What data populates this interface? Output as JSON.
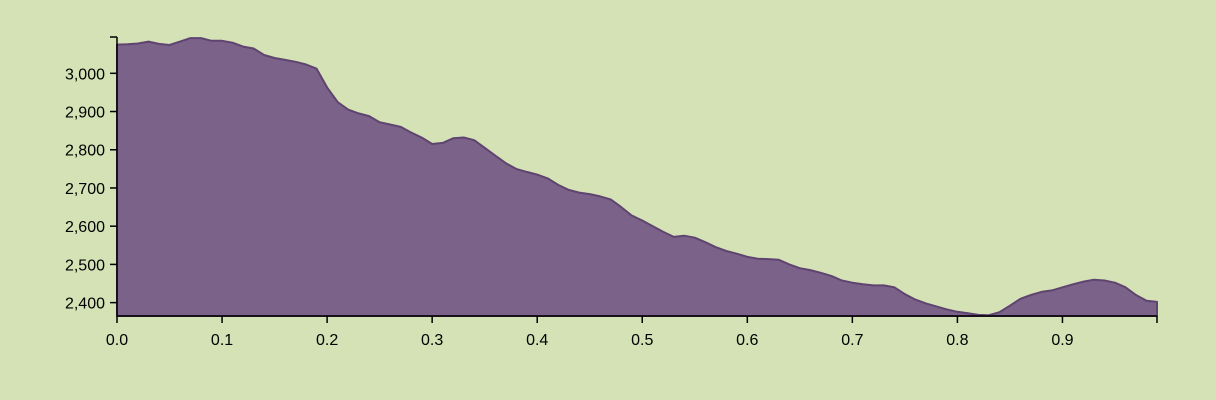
{
  "colors": {
    "background": "#d4e2b6",
    "area_fill": "#7b6289",
    "area_stroke": "#5f4470",
    "axis": "#000000"
  },
  "chart_data": {
    "type": "area",
    "title": "",
    "xlabel": "",
    "ylabel": "",
    "grid": false,
    "xlim": [
      0,
      0.99
    ],
    "ylim": [
      2365,
      3095
    ],
    "x_ticks": [
      {
        "value": 0.0,
        "label": "0.0"
      },
      {
        "value": 0.1,
        "label": "0.1"
      },
      {
        "value": 0.2,
        "label": "0.2"
      },
      {
        "value": 0.3,
        "label": "0.3"
      },
      {
        "value": 0.4,
        "label": "0.4"
      },
      {
        "value": 0.5,
        "label": "0.5"
      },
      {
        "value": 0.6,
        "label": "0.6"
      },
      {
        "value": 0.7,
        "label": "0.7"
      },
      {
        "value": 0.8,
        "label": "0.8"
      },
      {
        "value": 0.9,
        "label": "0.9"
      }
    ],
    "y_ticks": [
      {
        "value": 2400,
        "label": "2,400"
      },
      {
        "value": 2500,
        "label": "2,500"
      },
      {
        "value": 2600,
        "label": "2,600"
      },
      {
        "value": 2700,
        "label": "2,700"
      },
      {
        "value": 2800,
        "label": "2,800"
      },
      {
        "value": 2900,
        "label": "2,900"
      },
      {
        "value": 3000,
        "label": "3,000"
      }
    ],
    "series": [
      {
        "x": [
          0.0,
          0.01,
          0.02,
          0.03,
          0.04,
          0.05,
          0.06,
          0.07,
          0.08,
          0.09,
          0.1,
          0.11,
          0.12,
          0.13,
          0.14,
          0.15,
          0.16,
          0.17,
          0.18,
          0.19,
          0.2,
          0.21,
          0.22,
          0.23,
          0.24,
          0.25,
          0.26,
          0.27,
          0.28,
          0.29,
          0.3,
          0.31,
          0.32,
          0.33,
          0.34,
          0.35,
          0.36,
          0.37,
          0.38,
          0.39,
          0.4,
          0.41,
          0.42,
          0.43,
          0.44,
          0.45,
          0.46,
          0.47,
          0.48,
          0.49,
          0.5,
          0.51,
          0.52,
          0.53,
          0.54,
          0.55,
          0.56,
          0.57,
          0.58,
          0.59,
          0.6,
          0.61,
          0.62,
          0.63,
          0.64,
          0.65,
          0.66,
          0.67,
          0.68,
          0.69,
          0.7,
          0.71,
          0.72,
          0.73,
          0.74,
          0.75,
          0.76,
          0.77,
          0.78,
          0.79,
          0.8,
          0.81,
          0.82,
          0.83,
          0.84,
          0.85,
          0.86,
          0.87,
          0.88,
          0.89,
          0.9,
          0.91,
          0.92,
          0.93,
          0.94,
          0.95,
          0.96,
          0.97,
          0.98,
          0.99
        ],
        "y": [
          3075,
          3076,
          3078,
          3083,
          3077,
          3074,
          3083,
          3092,
          3092,
          3085,
          3085,
          3080,
          3070,
          3065,
          3048,
          3040,
          3035,
          3030,
          3023,
          3012,
          2963,
          2925,
          2905,
          2895,
          2888,
          2872,
          2866,
          2860,
          2845,
          2832,
          2815,
          2818,
          2830,
          2832,
          2825,
          2805,
          2785,
          2765,
          2750,
          2742,
          2735,
          2725,
          2708,
          2695,
          2688,
          2684,
          2678,
          2670,
          2650,
          2628,
          2615,
          2600,
          2585,
          2572,
          2575,
          2570,
          2558,
          2545,
          2535,
          2528,
          2520,
          2515,
          2514,
          2512,
          2500,
          2490,
          2485,
          2478,
          2470,
          2458,
          2452,
          2448,
          2445,
          2445,
          2440,
          2422,
          2408,
          2398,
          2390,
          2382,
          2376,
          2372,
          2368,
          2367,
          2375,
          2392,
          2410,
          2420,
          2428,
          2432,
          2440,
          2448,
          2455,
          2460,
          2458,
          2452,
          2440,
          2420,
          2405,
          2402
        ]
      }
    ]
  }
}
